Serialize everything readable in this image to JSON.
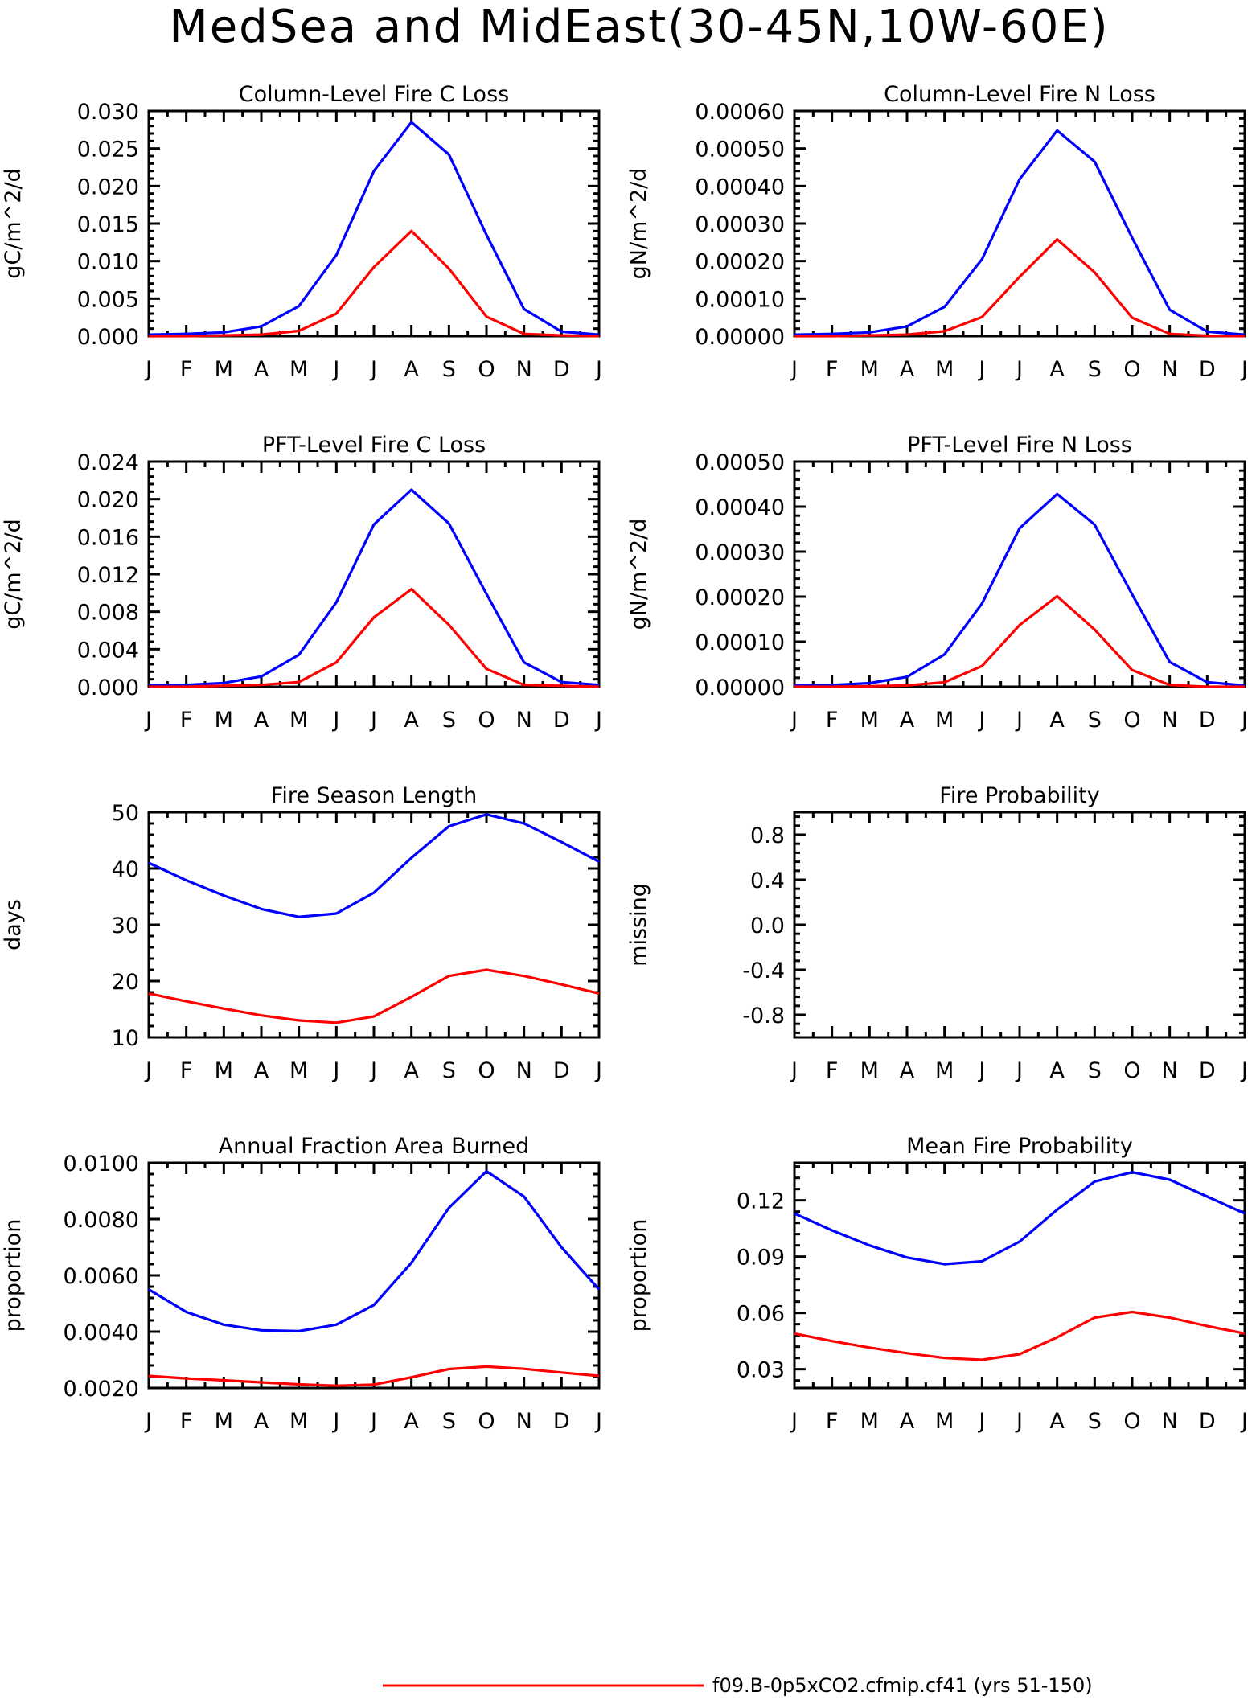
{
  "figure_title": "MedSea and MidEast(30-45N,10W-60E)",
  "colors": {
    "blue": "#0000ff",
    "red": "#ff0000"
  },
  "legend": [
    {
      "label": "f09.B-0p5xCO2.cfmip.cf41 (yrs 51-150)",
      "color": "#ff0000"
    }
  ],
  "chart_data": [
    {
      "type": "line",
      "title": "Column-Level Fire C Loss",
      "ylabel": "gC/m^2/d",
      "categories": [
        "J",
        "F",
        "M",
        "A",
        "M",
        "J",
        "J",
        "A",
        "S",
        "O",
        "N",
        "D",
        "J"
      ],
      "ylim": [
        0,
        0.03
      ],
      "yticks": [
        "0.000",
        "0.005",
        "0.010",
        "0.015",
        "0.020",
        "0.025",
        "0.030"
      ],
      "series": [
        {
          "color": "#0000ff",
          "values": [
            0.0002,
            0.0003,
            0.0005,
            0.0013,
            0.004,
            0.0108,
            0.022,
            0.0285,
            0.0242,
            0.0135,
            0.0036,
            0.0006,
            0.0002
          ]
        },
        {
          "color": "#ff0000",
          "values": [
            0.0,
            0.0,
            0.0001,
            0.0002,
            0.0007,
            0.003,
            0.0092,
            0.014,
            0.009,
            0.0026,
            0.0003,
            0.0001,
            0.0
          ]
        }
      ]
    },
    {
      "type": "line",
      "title": "Column-Level Fire N Loss",
      "ylabel": "gN/m^2/d",
      "categories": [
        "J",
        "F",
        "M",
        "A",
        "M",
        "J",
        "J",
        "A",
        "S",
        "O",
        "N",
        "D",
        "J"
      ],
      "ylim": [
        0,
        0.0006
      ],
      "yticks": [
        "0.00000",
        "0.00010",
        "0.00020",
        "0.00030",
        "0.00040",
        "0.00050",
        "0.00060"
      ],
      "series": [
        {
          "color": "#0000ff",
          "values": [
            4e-06,
            6e-06,
            1e-05,
            2.6e-05,
            7.8e-05,
            0.000205,
            0.000418,
            0.000548,
            0.000465,
            0.000262,
            7e-05,
            1.2e-05,
            4e-06
          ]
        },
        {
          "color": "#ff0000",
          "values": [
            0.0,
            0.0,
            2e-06,
            4e-06,
            1.3e-05,
            5.1e-05,
            0.000158,
            0.000258,
            0.00017,
            4.9e-05,
            6e-06,
            1e-06,
            0.0
          ]
        }
      ]
    },
    {
      "type": "line",
      "title": "PFT-Level Fire C Loss",
      "ylabel": "gC/m^2/d",
      "categories": [
        "J",
        "F",
        "M",
        "A",
        "M",
        "J",
        "J",
        "A",
        "S",
        "O",
        "N",
        "D",
        "J"
      ],
      "ylim": [
        0,
        0.024
      ],
      "yticks": [
        "0.000",
        "0.004",
        "0.008",
        "0.012",
        "0.016",
        "0.020",
        "0.024"
      ],
      "series": [
        {
          "color": "#0000ff",
          "values": [
            0.0002,
            0.0002,
            0.0004,
            0.0011,
            0.0034,
            0.009,
            0.0173,
            0.021,
            0.0174,
            0.0099,
            0.0026,
            0.0005,
            0.0002
          ]
        },
        {
          "color": "#ff0000",
          "values": [
            0.0,
            0.0,
            0.0001,
            0.0002,
            0.0005,
            0.0026,
            0.0074,
            0.0104,
            0.0066,
            0.0019,
            0.0002,
            0.0001,
            0.0
          ]
        }
      ]
    },
    {
      "type": "line",
      "title": "PFT-Level Fire N Loss",
      "ylabel": "gN/m^2/d",
      "categories": [
        "J",
        "F",
        "M",
        "A",
        "M",
        "J",
        "J",
        "A",
        "S",
        "O",
        "N",
        "D",
        "J"
      ],
      "ylim": [
        0,
        0.0005
      ],
      "yticks": [
        "0.00000",
        "0.00010",
        "0.00020",
        "0.00030",
        "0.00040",
        "0.00050"
      ],
      "series": [
        {
          "color": "#0000ff",
          "values": [
            3e-06,
            4e-06,
            8e-06,
            2.2e-05,
            7.2e-05,
            0.000185,
            0.000352,
            0.000428,
            0.00036,
            0.000205,
            5.5e-05,
            1e-05,
            3e-06
          ]
        },
        {
          "color": "#ff0000",
          "values": [
            0.0,
            0.0,
            1e-06,
            3e-06,
            1e-05,
            4.6e-05,
            0.000137,
            0.000201,
            0.000127,
            3.7e-05,
            4e-06,
            0.0,
            0.0
          ]
        }
      ]
    },
    {
      "type": "line",
      "title": "Fire Season Length",
      "ylabel": "days",
      "categories": [
        "J",
        "F",
        "M",
        "A",
        "M",
        "J",
        "J",
        "A",
        "S",
        "O",
        "N",
        "D",
        "J"
      ],
      "ylim": [
        10,
        50
      ],
      "yticks": [
        "10",
        "20",
        "30",
        "40",
        "50"
      ],
      "series": [
        {
          "color": "#0000ff",
          "values": [
            41.0,
            37.9,
            35.2,
            32.8,
            31.4,
            32.0,
            35.7,
            41.9,
            47.5,
            49.6,
            48.0,
            44.7,
            41.2
          ]
        },
        {
          "color": "#ff0000",
          "values": [
            17.8,
            16.4,
            15.1,
            13.9,
            13.0,
            12.6,
            13.7,
            17.2,
            20.9,
            22.0,
            20.9,
            19.4,
            17.8
          ]
        }
      ]
    },
    {
      "type": "line",
      "title": "Fire Probability",
      "ylabel": "missing",
      "categories": [
        "J",
        "F",
        "M",
        "A",
        "M",
        "J",
        "J",
        "A",
        "S",
        "O",
        "N",
        "D",
        "J"
      ],
      "ylim": [
        -1.0,
        1.0
      ],
      "yticks": [
        "-0.8",
        "-0.4",
        "0.0",
        "0.4",
        "0.8"
      ],
      "series": []
    },
    {
      "type": "line",
      "title": "Annual Fraction Area Burned",
      "ylabel": "proportion",
      "categories": [
        "J",
        "F",
        "M",
        "A",
        "M",
        "J",
        "J",
        "A",
        "S",
        "O",
        "N",
        "D",
        "J"
      ],
      "ylim": [
        0.002,
        0.01
      ],
      "yticks": [
        "0.0020",
        "0.0040",
        "0.0060",
        "0.0080",
        "0.0100"
      ],
      "series": [
        {
          "color": "#0000ff",
          "values": [
            0.0055,
            0.0047,
            0.00425,
            0.00405,
            0.00402,
            0.00425,
            0.00495,
            0.00645,
            0.0084,
            0.0097,
            0.0088,
            0.007,
            0.0055
          ]
        },
        {
          "color": "#ff0000",
          "values": [
            0.00243,
            0.00234,
            0.00227,
            0.0022,
            0.00213,
            0.00208,
            0.00212,
            0.00238,
            0.00267,
            0.00276,
            0.00268,
            0.00255,
            0.00243
          ]
        }
      ]
    },
    {
      "type": "line",
      "title": "Mean Fire Probability",
      "ylabel": "proportion",
      "categories": [
        "J",
        "F",
        "M",
        "A",
        "M",
        "J",
        "J",
        "A",
        "S",
        "O",
        "N",
        "D",
        "J"
      ],
      "ylim": [
        0.02,
        0.14
      ],
      "yticks": [
        "0.03",
        "0.06",
        "0.09",
        "0.12"
      ],
      "series": [
        {
          "color": "#0000ff",
          "values": [
            0.113,
            0.104,
            0.096,
            0.0895,
            0.086,
            0.0875,
            0.098,
            0.115,
            0.13,
            0.135,
            0.131,
            0.122,
            0.113
          ]
        },
        {
          "color": "#ff0000",
          "values": [
            0.049,
            0.045,
            0.0415,
            0.0385,
            0.036,
            0.035,
            0.038,
            0.047,
            0.0575,
            0.0605,
            0.0575,
            0.053,
            0.049
          ]
        }
      ]
    }
  ]
}
